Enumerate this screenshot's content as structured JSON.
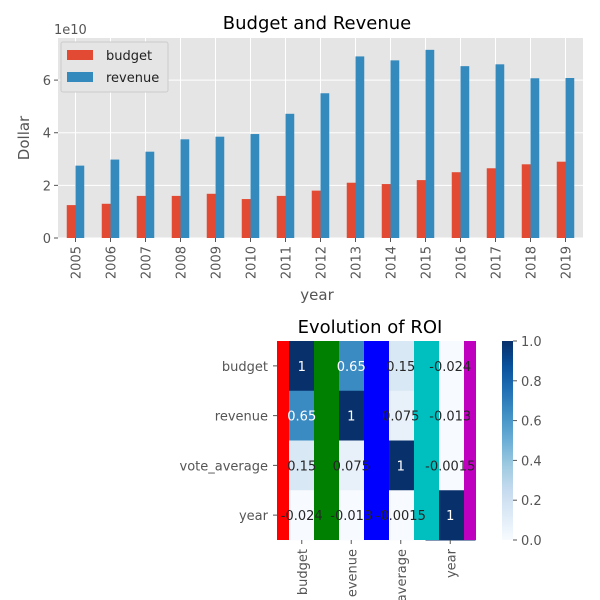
{
  "colors": {
    "budget": "#e24a33",
    "revenue": "#348abd",
    "plot_bg": "#e5e5e5",
    "grid": "#ffffff",
    "text": "#555555",
    "title": "#000000",
    "stripes": [
      "#ff0000",
      "#008000",
      "#0000ff",
      "#00bfbf",
      "#bf00bf"
    ]
  },
  "chart_data": [
    {
      "type": "bar",
      "title": "Budget and Revenue",
      "xlabel": "year",
      "ylabel": "Dollar",
      "y_offset_label": "1e10",
      "ylim": [
        0,
        7.6
      ],
      "yticks": [
        0,
        2,
        4,
        6
      ],
      "grid": true,
      "legend_position": "top-left",
      "categories": [
        "2005",
        "2006",
        "2007",
        "2008",
        "2009",
        "2010",
        "2011",
        "2012",
        "2013",
        "2014",
        "2015",
        "2016",
        "2017",
        "2018",
        "2019"
      ],
      "series": [
        {
          "name": "budget",
          "values": [
            1.25,
            1.3,
            1.6,
            1.6,
            1.68,
            1.48,
            1.6,
            1.8,
            2.1,
            2.05,
            2.2,
            2.5,
            2.65,
            2.8,
            2.9
          ]
        },
        {
          "name": "revenue",
          "values": [
            2.75,
            2.98,
            3.28,
            3.75,
            3.85,
            3.95,
            4.72,
            5.5,
            6.9,
            6.75,
            7.15,
            6.53,
            6.6,
            6.07,
            6.08
          ]
        }
      ]
    },
    {
      "type": "heatmap",
      "title": "Evolution of ROI",
      "rows": [
        "budget",
        "revenue",
        "vote_average",
        "year"
      ],
      "columns": [
        "budget",
        "revenue",
        "vote_average",
        "year"
      ],
      "column_labels_visible": [
        "budget",
        "evenue",
        "average",
        "year"
      ],
      "values": [
        [
          1,
          0.65,
          0.15,
          -0.024
        ],
        [
          0.65,
          1,
          0.075,
          -0.013
        ],
        [
          0.15,
          0.075,
          1,
          -0.0015
        ],
        [
          -0.024,
          -0.013,
          -0.0015,
          1
        ]
      ],
      "labels": [
        [
          "1",
          "0.65",
          "0.15",
          "-0.024"
        ],
        [
          "0.65",
          "1",
          "0.075",
          "-0.013"
        ],
        [
          "0.15",
          "0.075",
          "1",
          "-0.0015"
        ],
        [
          "-0.024",
          "-0.013",
          "-0.0015",
          "1"
        ]
      ],
      "colorbar": {
        "range": [
          0,
          1
        ],
        "ticks": [
          "0.0",
          "0.2",
          "0.4",
          "0.6",
          "0.8",
          "1.0"
        ],
        "colormap": "Blues"
      }
    }
  ]
}
